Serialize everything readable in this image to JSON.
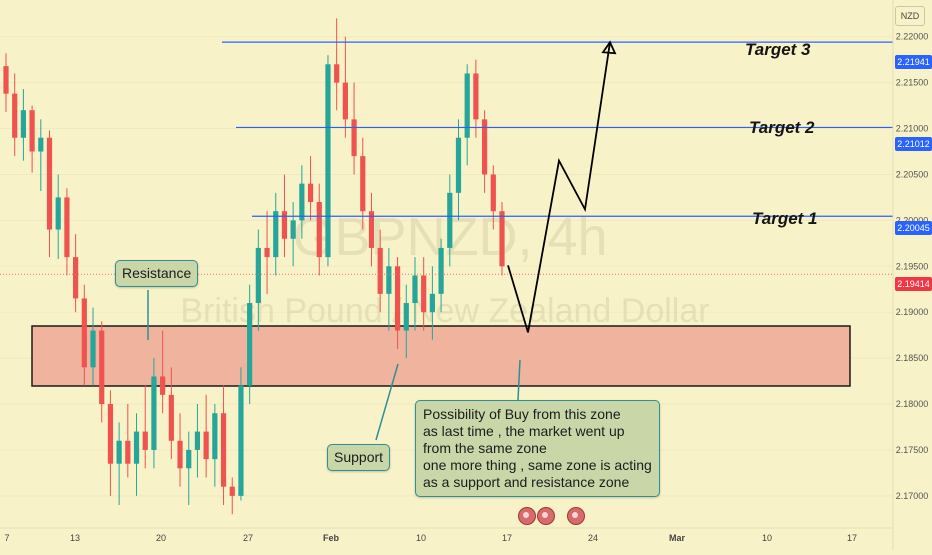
{
  "chart_data": {
    "type": "candlestick",
    "symbol": "GBPNZD, 4h",
    "instrument_name": "British Pound / New Zealand Dollar",
    "currency": "NZD",
    "y_range": [
      2.1665,
      2.224
    ],
    "y_ticks": [
      "2.22000",
      "2.21500",
      "2.21000",
      "2.20500",
      "2.20000",
      "2.19500",
      "2.19000",
      "2.18500",
      "2.18000",
      "2.17500",
      "2.17000"
    ],
    "x_ticks": [
      "7",
      "13",
      "20",
      "27",
      "Feb",
      "10",
      "17",
      "24",
      "Mar",
      "10",
      "17"
    ],
    "price_tags": {
      "target3": "2.21941",
      "target2": "2.21012",
      "target1": "2.20045",
      "current": "2.19414"
    },
    "levels": [
      {
        "label": "Target 3",
        "value": 2.21941
      },
      {
        "label": "Target 2",
        "value": 2.21012
      },
      {
        "label": "Target 1",
        "value": 2.20045
      }
    ],
    "current_price": 2.19414,
    "zone": {
      "low": 2.1825,
      "high": 2.1893
    },
    "annotations": {
      "resistance": "Resistance",
      "support": "Support",
      "note": [
        "Possibility of Buy from this zone",
        "as last time , the market went up",
        "from the same zone",
        "one more thing , same zone is acting",
        "as a support and resistance zone"
      ]
    },
    "projection_path": [
      2.1951,
      2.1878,
      2.2065,
      2.2012,
      2.2194
    ],
    "candles_ohlc": [
      [
        2.2168,
        2.2182,
        2.2118,
        2.2138
      ],
      [
        2.2138,
        2.216,
        2.207,
        2.209
      ],
      [
        2.209,
        2.2143,
        2.2065,
        2.212
      ],
      [
        2.212,
        2.2125,
        2.2052,
        2.2075
      ],
      [
        2.2075,
        2.211,
        2.2032,
        2.209
      ],
      [
        2.209,
        2.2098,
        2.196,
        2.199
      ],
      [
        2.199,
        2.205,
        2.1958,
        2.2025
      ],
      [
        2.2025,
        2.2035,
        2.194,
        2.196
      ],
      [
        2.196,
        2.1985,
        2.19,
        2.1915
      ],
      [
        2.1915,
        2.193,
        2.182,
        2.184
      ],
      [
        2.184,
        2.1905,
        2.182,
        2.188
      ],
      [
        2.188,
        2.189,
        2.178,
        2.18
      ],
      [
        2.18,
        2.1815,
        2.17,
        2.1735
      ],
      [
        2.1735,
        2.178,
        2.169,
        2.176
      ],
      [
        2.176,
        2.18,
        2.172,
        2.1735
      ],
      [
        2.1735,
        2.179,
        2.17,
        2.177
      ],
      [
        2.177,
        2.182,
        2.173,
        2.175
      ],
      [
        2.175,
        2.185,
        2.173,
        2.183
      ],
      [
        2.183,
        2.188,
        2.179,
        2.181
      ],
      [
        2.181,
        2.184,
        2.174,
        2.176
      ],
      [
        2.176,
        2.179,
        2.171,
        2.173
      ],
      [
        2.173,
        2.177,
        2.169,
        2.175
      ],
      [
        2.175,
        2.18,
        2.172,
        2.177
      ],
      [
        2.177,
        2.181,
        2.172,
        2.174
      ],
      [
        2.174,
        2.18,
        2.171,
        2.179
      ],
      [
        2.179,
        2.182,
        2.169,
        2.171
      ],
      [
        2.171,
        2.172,
        2.168,
        2.17
      ],
      [
        2.17,
        2.184,
        2.1695,
        2.182
      ],
      [
        2.182,
        2.193,
        2.18,
        2.191
      ],
      [
        2.191,
        2.199,
        2.188,
        2.197
      ],
      [
        2.197,
        2.201,
        2.192,
        2.196
      ],
      [
        2.196,
        2.203,
        2.194,
        2.201
      ],
      [
        2.201,
        2.205,
        2.196,
        2.198
      ],
      [
        2.198,
        2.202,
        2.195,
        2.2
      ],
      [
        2.2,
        2.206,
        2.198,
        2.204
      ],
      [
        2.204,
        2.207,
        2.2,
        2.202
      ],
      [
        2.202,
        2.204,
        2.194,
        2.196
      ],
      [
        2.196,
        2.218,
        2.195,
        2.217
      ],
      [
        2.217,
        2.222,
        2.212,
        2.215
      ],
      [
        2.215,
        2.22,
        2.209,
        2.211
      ],
      [
        2.211,
        2.215,
        2.205,
        2.207
      ],
      [
        2.207,
        2.209,
        2.199,
        2.201
      ],
      [
        2.201,
        2.203,
        2.195,
        2.197
      ],
      [
        2.197,
        2.199,
        2.19,
        2.192
      ],
      [
        2.192,
        2.197,
        2.188,
        2.195
      ],
      [
        2.195,
        2.196,
        2.186,
        2.188
      ],
      [
        2.188,
        2.193,
        2.185,
        2.191
      ],
      [
        2.191,
        2.196,
        2.188,
        2.194
      ],
      [
        2.194,
        2.196,
        2.188,
        2.19
      ],
      [
        2.19,
        2.195,
        2.187,
        2.192
      ],
      [
        2.192,
        2.198,
        2.19,
        2.197
      ],
      [
        2.197,
        2.205,
        2.195,
        2.203
      ],
      [
        2.203,
        2.211,
        2.2,
        2.209
      ],
      [
        2.209,
        2.217,
        2.206,
        2.216
      ],
      [
        2.216,
        2.2175,
        2.209,
        2.211
      ],
      [
        2.211,
        2.212,
        2.203,
        2.205
      ],
      [
        2.205,
        2.206,
        2.199,
        2.201
      ],
      [
        2.201,
        2.202,
        2.194,
        2.195
      ]
    ]
  }
}
